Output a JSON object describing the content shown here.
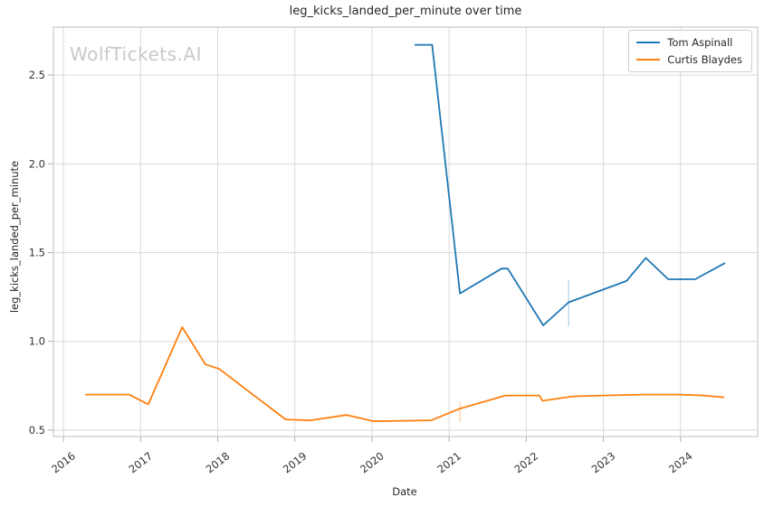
{
  "title": "leg_kicks_landed_per_minute over time",
  "watermark": "WolfTickets.AI",
  "chart_data": {
    "type": "line",
    "title": "leg_kicks_landed_per_minute over time",
    "xlabel": "Date",
    "ylabel": "leg_kicks_landed_per_minute",
    "xlim": [
      2015.87,
      2025.0
    ],
    "ylim": [
      0.464,
      2.77
    ],
    "x_ticks": [
      2016,
      2017,
      2018,
      2019,
      2020,
      2021,
      2022,
      2023,
      2024
    ],
    "y_ticks": [
      0.5,
      1.0,
      1.5,
      2.0,
      2.5
    ],
    "grid": true,
    "legend_position": "upper right",
    "series": [
      {
        "name": "Tom Aspinall",
        "color": "#1f77b4",
        "points": [
          [
            2020.56,
            2.67
          ],
          [
            2020.78,
            2.67
          ],
          [
            2021.14,
            1.27
          ],
          [
            2021.68,
            1.41
          ],
          [
            2021.76,
            1.41
          ],
          [
            2022.22,
            1.09
          ],
          [
            2022.55,
            1.22
          ],
          [
            2023.3,
            1.34
          ],
          [
            2023.55,
            1.47
          ],
          [
            2023.84,
            1.35
          ],
          [
            2024.19,
            1.35
          ],
          [
            2024.57,
            1.44
          ]
        ]
      },
      {
        "name": "Curtis Blaydes",
        "color": "#ff7f0e",
        "points": [
          [
            2016.29,
            0.7
          ],
          [
            2016.85,
            0.7
          ],
          [
            2017.1,
            0.645
          ],
          [
            2017.54,
            1.08
          ],
          [
            2017.84,
            0.87
          ],
          [
            2018.02,
            0.845
          ],
          [
            2018.38,
            0.725
          ],
          [
            2018.88,
            0.56
          ],
          [
            2019.2,
            0.555
          ],
          [
            2019.67,
            0.585
          ],
          [
            2020.02,
            0.55
          ],
          [
            2020.77,
            0.555
          ],
          [
            2021.13,
            0.62
          ],
          [
            2021.73,
            0.695
          ],
          [
            2022.17,
            0.695
          ],
          [
            2022.21,
            0.665
          ],
          [
            2022.6,
            0.69
          ],
          [
            2023.0,
            0.695
          ],
          [
            2023.5,
            0.7
          ],
          [
            2024.0,
            0.7
          ],
          [
            2024.3,
            0.695
          ],
          [
            2024.56,
            0.685
          ]
        ]
      }
    ],
    "event_markers": [
      {
        "series": "Tom Aspinall",
        "x": 2022.55,
        "y_from": 1.085,
        "y_to": 1.345,
        "color": "#1f77b4",
        "opacity": 0.3
      },
      {
        "series": "Curtis Blaydes",
        "x": 2021.14,
        "y_from": 0.545,
        "y_to": 0.66,
        "color": "#ff7f0e",
        "opacity": 0.35
      }
    ]
  },
  "colors": {
    "grid": "#d9d9d9",
    "spine": "#c8c8c8",
    "tick": "#b0b0b0",
    "text": "#262626",
    "watermark": "#c9c9c9",
    "background": "#ffffff"
  }
}
